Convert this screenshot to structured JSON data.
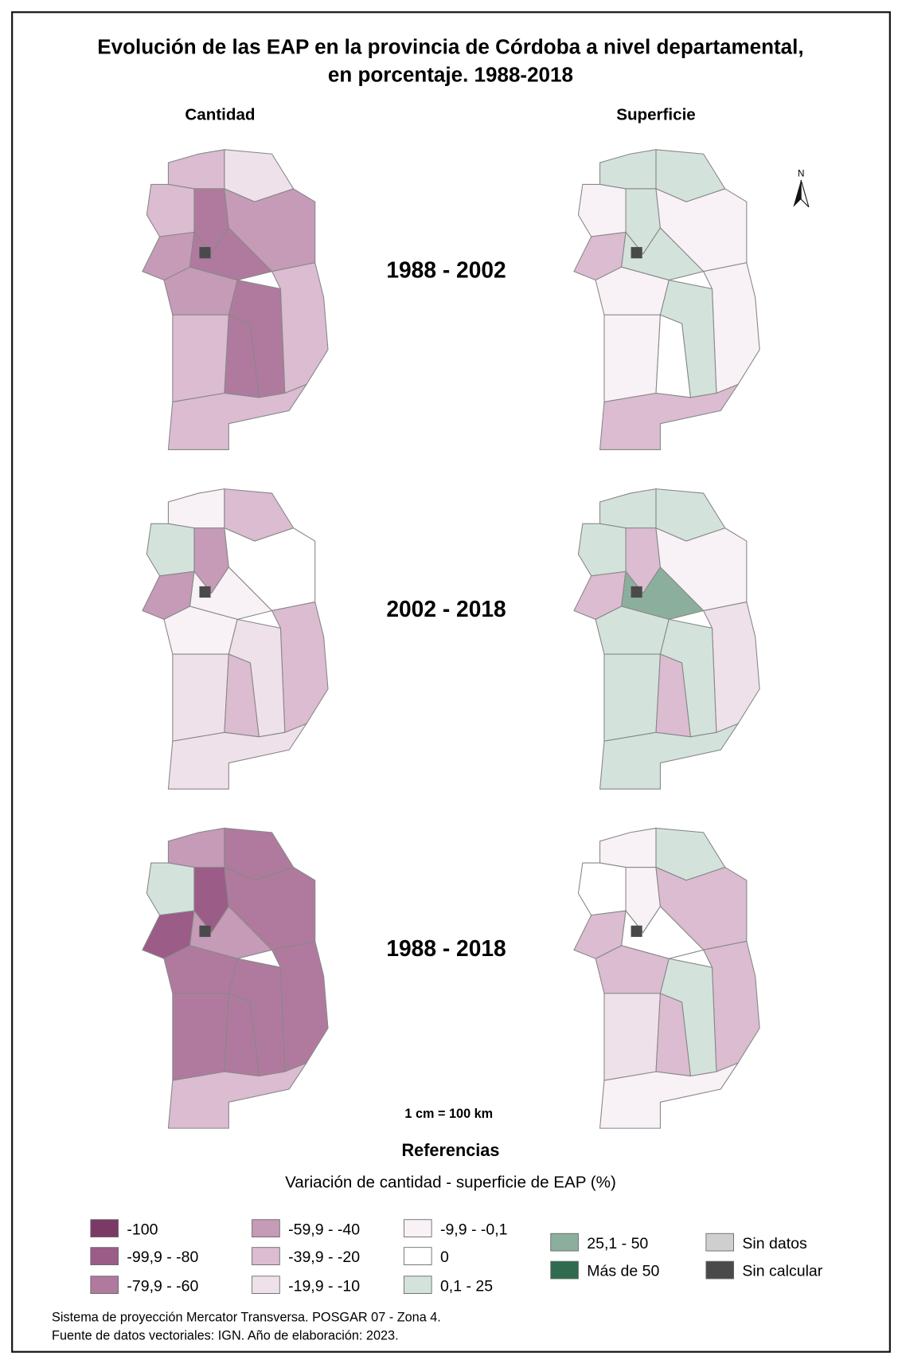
{
  "header": {
    "title_lines": [
      "Evolución de las EAP en la provincia de Córdoba a nivel departamental,",
      "en porcentaje. 1988-2018"
    ]
  },
  "columns": [
    "Cantidad",
    "Superficie"
  ],
  "periods": [
    "1988 - 2002",
    "2002 - 2018",
    "1988 - 2018"
  ],
  "north": "N",
  "scale": "1 cm = 100 km",
  "legend": {
    "title": "Referencias",
    "subtitle": "Variación de cantidad - superficie de EAP (%)",
    "items": [
      {
        "label": "-100",
        "color": "#7b3a66"
      },
      {
        "label": "-99,9 - -80",
        "color": "#9b5c87"
      },
      {
        "label": "-79,9 - -60",
        "color": "#b07a9f"
      },
      {
        "label": "-59,9 - -40",
        "color": "#c59bb7"
      },
      {
        "label": "-39,9 - -20",
        "color": "#dbbcd0"
      },
      {
        "label": "-19,9 - -10",
        "color": "#efe1ea"
      },
      {
        "label": "-9,9 - -0,1",
        "color": "#f8f1f5"
      },
      {
        "label": "0",
        "color": "#ffffff"
      },
      {
        "label": "0,1 - 25",
        "color": "#d3e3dc"
      },
      {
        "label": "25,1 - 50",
        "color": "#8caf9d"
      },
      {
        "label": "Más de 50",
        "color": "#2e6b4f"
      },
      {
        "label": "Sin datos",
        "color": "#cfcfcf"
      },
      {
        "label": "Sin calcular",
        "color": "#4a4a4a"
      }
    ]
  },
  "footer": [
    "Sistema de proyección Mercator Transversa. POSGAR 07 - Zona 4.",
    "Fuente de datos vectoriales: IGN. Año de elaboración: 2023."
  ]
}
